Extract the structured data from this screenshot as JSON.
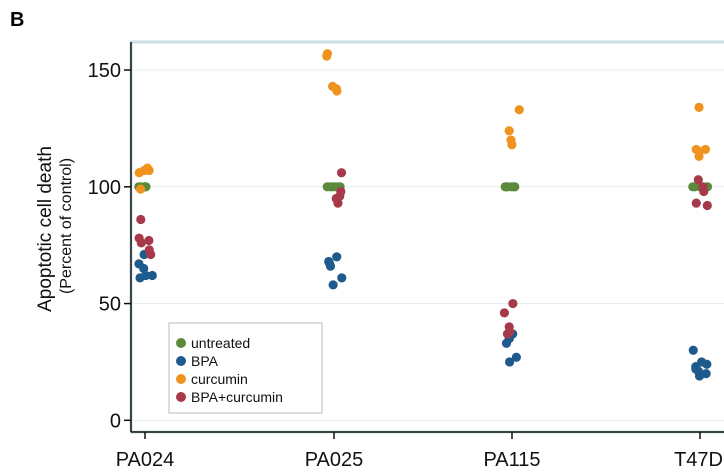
{
  "panel_label": "B",
  "chart_data": {
    "type": "scatter",
    "title": "",
    "ylabel": "Apoptotic cell death",
    "ylabel_sub": "(Percent of control)",
    "xlabel": "",
    "categories": [
      "PA024",
      "PA025",
      "PA115",
      "T47D"
    ],
    "ylim": [
      -5,
      162
    ],
    "yticks": [
      0,
      50,
      100,
      150
    ],
    "grid": true,
    "legend_position": "bottom-left",
    "series": [
      {
        "name": "untreated",
        "color": "#5a8a3a",
        "points": [
          [
            0,
            100
          ],
          [
            0,
            100
          ],
          [
            0,
            100
          ],
          [
            0,
            100
          ],
          [
            0,
            100
          ],
          [
            0,
            100
          ],
          [
            1,
            100
          ],
          [
            1,
            100
          ],
          [
            1,
            100
          ],
          [
            1,
            100
          ],
          [
            1,
            100
          ],
          [
            1,
            100
          ],
          [
            2,
            100
          ],
          [
            2,
            100
          ],
          [
            2,
            100
          ],
          [
            2,
            100
          ],
          [
            2,
            100
          ],
          [
            2,
            100
          ],
          [
            3,
            100
          ],
          [
            3,
            100
          ],
          [
            3,
            100
          ],
          [
            3,
            100
          ],
          [
            3,
            100
          ],
          [
            3,
            100
          ]
        ]
      },
      {
        "name": "BPA",
        "color": "#1f5a8c",
        "points": [
          [
            0,
            67
          ],
          [
            0,
            71
          ],
          [
            0,
            62
          ],
          [
            0,
            61
          ],
          [
            0,
            65
          ],
          [
            0,
            62
          ],
          [
            1,
            70
          ],
          [
            1,
            66
          ],
          [
            1,
            68
          ],
          [
            1,
            61
          ],
          [
            1,
            58
          ],
          [
            1,
            67
          ],
          [
            2,
            37
          ],
          [
            2,
            35
          ],
          [
            2,
            33
          ],
          [
            2,
            27
          ],
          [
            2,
            25
          ],
          [
            2,
            36
          ],
          [
            3,
            30
          ],
          [
            3,
            24
          ],
          [
            3,
            22
          ],
          [
            3,
            20
          ],
          [
            3,
            19
          ],
          [
            3,
            23
          ],
          [
            3,
            25
          ],
          [
            3,
            21
          ]
        ]
      },
      {
        "name": "curcumin",
        "color": "#f0931e",
        "points": [
          [
            0,
            107
          ],
          [
            0,
            108
          ],
          [
            0,
            106
          ],
          [
            0,
            99
          ],
          [
            0,
            107
          ],
          [
            1,
            157
          ],
          [
            1,
            156
          ],
          [
            1,
            143
          ],
          [
            1,
            141
          ],
          [
            1,
            142
          ],
          [
            2,
            133
          ],
          [
            2,
            124
          ],
          [
            2,
            120
          ],
          [
            2,
            118
          ],
          [
            3,
            134
          ],
          [
            3,
            116
          ],
          [
            3,
            115
          ],
          [
            3,
            113
          ],
          [
            3,
            116
          ]
        ]
      },
      {
        "name": "BPA+curcumin",
        "color": "#a63a4a",
        "points": [
          [
            0,
            86
          ],
          [
            0,
            77
          ],
          [
            0,
            78
          ],
          [
            0,
            76
          ],
          [
            0,
            73
          ],
          [
            0,
            71
          ],
          [
            1,
            106
          ],
          [
            1,
            98
          ],
          [
            1,
            96
          ],
          [
            1,
            93
          ],
          [
            1,
            95
          ],
          [
            2,
            50
          ],
          [
            2,
            46
          ],
          [
            2,
            40
          ],
          [
            2,
            38
          ],
          [
            2,
            37
          ],
          [
            3,
            103
          ],
          [
            3,
            100
          ],
          [
            3,
            98
          ],
          [
            3,
            93
          ],
          [
            3,
            92
          ]
        ]
      }
    ]
  }
}
